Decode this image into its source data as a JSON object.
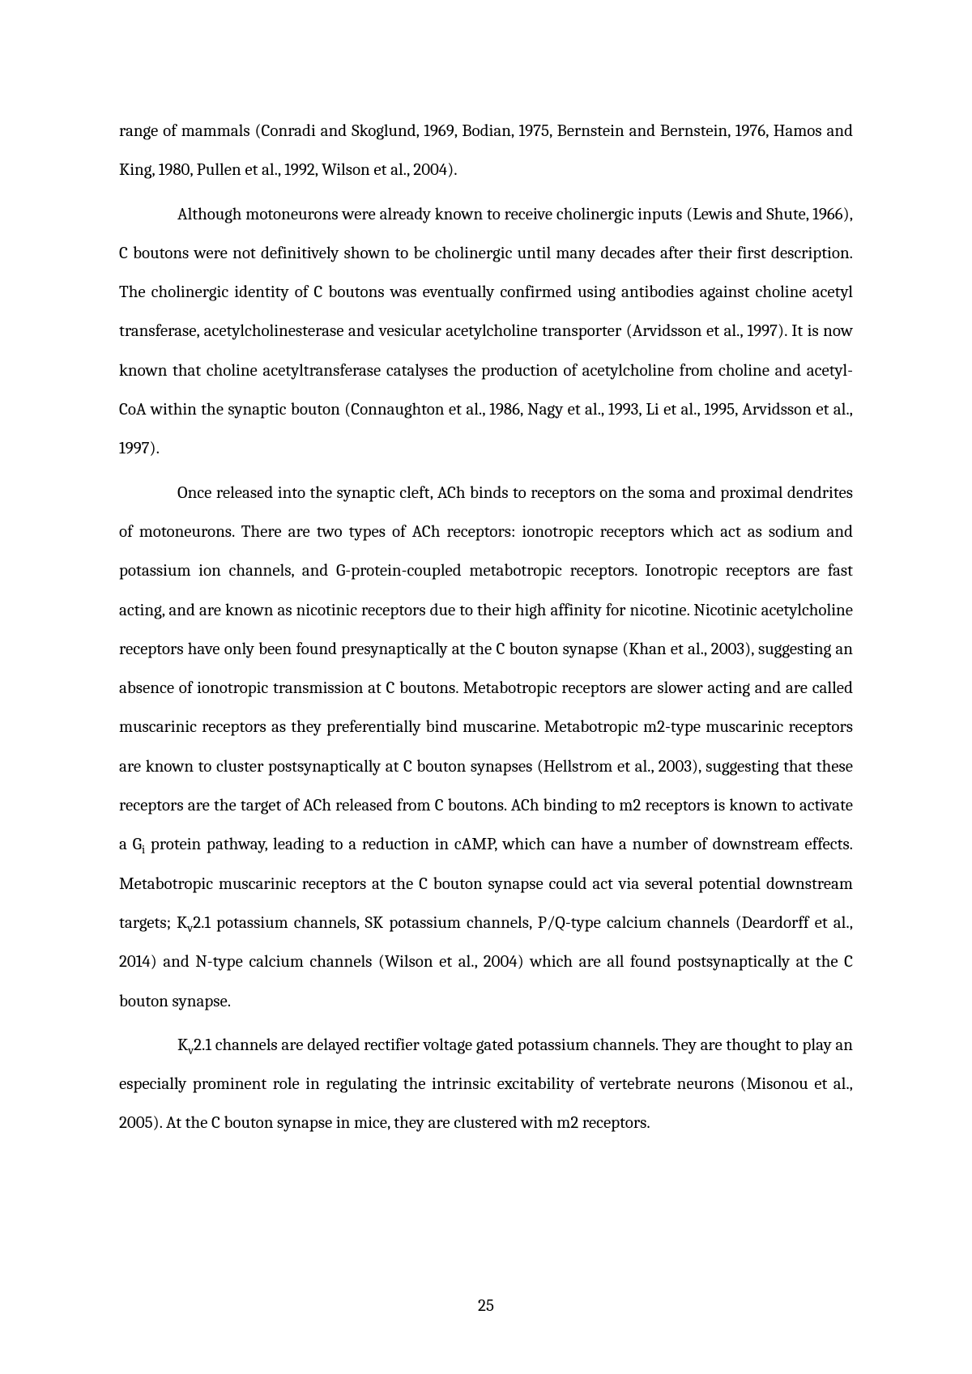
{
  "page_number": "25",
  "paragraphs": {
    "p1": "range of mammals (Conradi and Skoglund, 1969, Bodian, 1975, Bernstein and Bernstein, 1976, Hamos and King, 1980, Pullen et al., 1992, Wilson et al., 2004).",
    "p2": "Although motoneurons were already known to receive cholinergic inputs (Lewis and Shute, 1966), C boutons were not definitively shown to be cholinergic until many decades after their first description. The cholinergic identity of C boutons was eventually confirmed using antibodies against choline acetyl transferase, acetylcholinesterase and vesicular acetylcholine transporter (Arvidsson et al., 1997). It is now known that choline acetyltransferase catalyses the production of acetylcholine from choline and acetyl-CoA within the synaptic bouton (Connaughton et al., 1986, Nagy et al., 1993, Li et al., 1995, Arvidsson et al., 1997).",
    "p3_a": "Once released into the synaptic cleft, ACh binds to receptors on the soma and proximal dendrites of motoneurons. There are two types of ACh receptors: ionotropic receptors which act as sodium and potassium ion channels, and G-protein-coupled metabotropic receptors. Ionotropic receptors are fast acting, and are known as nicotinic receptors due to their high affinity for nicotine. Nicotinic acetylcholine receptors have only been found presynaptically at the C bouton synapse (Khan et al., 2003), suggesting an absence of ionotropic transmission at C boutons. Metabotropic receptors are slower acting and are called muscarinic receptors as they preferentially bind muscarine. Metabotropic m2-type muscarinic receptors are known to cluster postsynaptically at C bouton synapses (Hellstrom et al., 2003), suggesting that these receptors are the target of ACh released from C boutons. ACh binding to m2 receptors is known to activate a G",
    "p3_sub1": "i",
    "p3_b": " protein pathway, leading to a reduction in cAMP, which can have a number of downstream effects. Metabotropic muscarinic receptors at the C bouton synapse could act via several potential downstream targets; K",
    "p3_sub2": "v",
    "p3_c": "2.1 potassium channels, SK potassium channels, P/Q-type calcium channels (Deardorff et al., 2014) and N-type calcium channels (Wilson et al., 2004) which are all found postsynaptically at the C bouton synapse.",
    "p4_a": "K",
    "p4_sub1": "v",
    "p4_b": "2.1 channels are delayed rectifier voltage gated potassium channels. They are thought to play an especially prominent role in regulating the intrinsic excitability of vertebrate neurons (Misonou et al., 2005). At the C bouton synapse in mice, they are clustered with m2 receptors."
  }
}
